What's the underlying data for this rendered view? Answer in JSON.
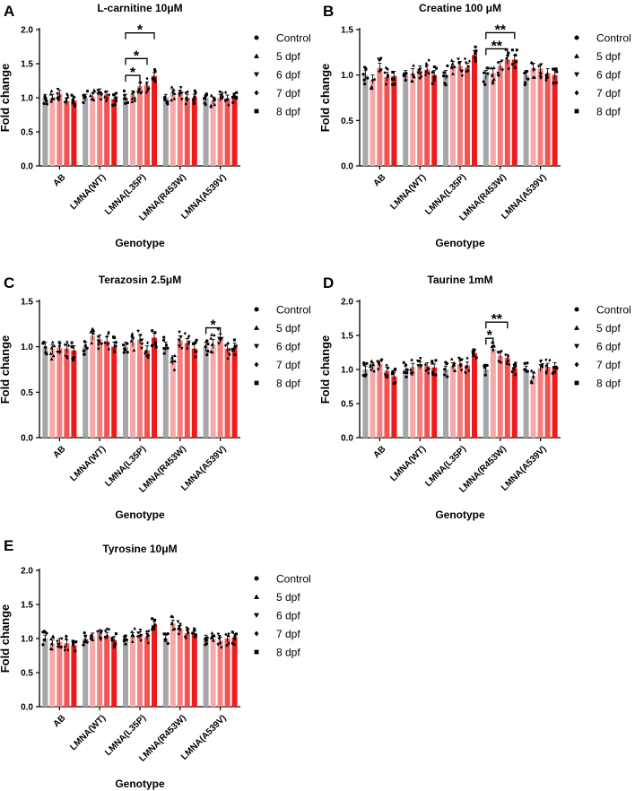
{
  "figure": {
    "colors": {
      "Control": "#a6a6ad",
      "5 dpf": "#f7a8a8",
      "6 dpf": "#f58080",
      "7 dpf": "#f25252",
      "8 dpf": "#ef1b1b"
    },
    "markers": {
      "Control": "circle",
      "5 dpf": "triangle-up",
      "6 dpf": "triangle-down",
      "7 dpf": "diamond",
      "8 dpf": "square"
    }
  },
  "chart_data": [
    {
      "panel": "A",
      "type": "bar",
      "title": "L-carnitine 10μM",
      "xlabel": "Genotype",
      "ylabel": "Fold change",
      "ylim": [
        0,
        2.0
      ],
      "yticks": [
        "0.0",
        "0.5",
        "1.0",
        "1.5",
        "2.0"
      ],
      "categories": [
        "AB",
        "LMNA(WT)",
        "LMNA(L35P)",
        "LMNA(R453W)",
        "LMNA(A539V)"
      ],
      "legend": [
        "Control",
        "5 dpf",
        "6 dpf",
        "7 dpf",
        "8 dpf"
      ],
      "series": [
        {
          "name": "Control",
          "values": [
            1.0,
            1.0,
            1.0,
            1.0,
            1.0
          ]
        },
        {
          "name": "5 dpf",
          "values": [
            1.0,
            1.02,
            1.05,
            1.07,
            0.96
          ]
        },
        {
          "name": "6 dpf",
          "values": [
            1.06,
            1.08,
            1.17,
            1.06,
            1.0
          ]
        },
        {
          "name": "7 dpf",
          "values": [
            0.95,
            1.05,
            1.18,
            1.0,
            0.99
          ]
        },
        {
          "name": "8 dpf",
          "values": [
            0.96,
            0.98,
            1.32,
            1.0,
            1.02
          ]
        }
      ],
      "significance": [
        {
          "category": 2,
          "from": 0,
          "to": 2,
          "label": "*"
        },
        {
          "category": 2,
          "from": 0,
          "to": 3,
          "label": "*"
        },
        {
          "category": 2,
          "from": 0,
          "to": 4,
          "label": "*"
        }
      ]
    },
    {
      "panel": "B",
      "type": "bar",
      "title": "Creatine 100 μM",
      "xlabel": "Genotype",
      "ylabel": "Fold change",
      "ylim": [
        0,
        1.5
      ],
      "yticks": [
        "0.0",
        "0.5",
        "1.0",
        "1.5"
      ],
      "categories": [
        "AB",
        "LMNA(WT)",
        "LMNA(L35P)",
        "LMNA(R453W)",
        "LMNA(A539V)"
      ],
      "legend": [
        "Control",
        "5 dpf",
        "6 dpf",
        "7 dpf",
        "8 dpf"
      ],
      "series": [
        {
          "name": "Control",
          "values": [
            1.0,
            1.0,
            1.0,
            1.0,
            1.0
          ]
        },
        {
          "name": "5 dpf",
          "values": [
            0.95,
            1.02,
            1.1,
            1.02,
            1.08
          ]
        },
        {
          "name": "6 dpf",
          "values": [
            1.08,
            1.05,
            1.1,
            1.1,
            1.07
          ]
        },
        {
          "name": "7 dpf",
          "values": [
            0.98,
            1.06,
            1.08,
            1.17,
            1.02
          ]
        },
        {
          "name": "8 dpf",
          "values": [
            0.99,
            1.0,
            1.22,
            1.17,
            1.0
          ]
        }
      ],
      "significance": [
        {
          "category": 3,
          "from": 0,
          "to": 3,
          "label": "**"
        },
        {
          "category": 3,
          "from": 0,
          "to": 4,
          "label": "**"
        }
      ]
    },
    {
      "panel": "C",
      "type": "bar",
      "title": "Terazosin 2.5μM",
      "xlabel": "Genotype",
      "ylabel": "Fold change",
      "ylim": [
        0,
        1.5
      ],
      "yticks": [
        "0.0",
        "0.5",
        "1.0",
        "1.5"
      ],
      "categories": [
        "AB",
        "LMNA(WT)",
        "LMNA(L35P)",
        "LMNA(R453W)",
        "LMNA(A539V)"
      ],
      "legend": [
        "Control",
        "5 dpf",
        "6 dpf",
        "7 dpf",
        "8 dpf"
      ],
      "series": [
        {
          "name": "Control",
          "values": [
            1.0,
            1.0,
            1.0,
            1.0,
            1.0
          ]
        },
        {
          "name": "5 dpf",
          "values": [
            0.97,
            1.12,
            1.05,
            0.85,
            1.03
          ]
        },
        {
          "name": "6 dpf",
          "values": [
            0.99,
            1.08,
            1.08,
            1.07,
            1.09
          ]
        },
        {
          "name": "7 dpf",
          "values": [
            0.98,
            1.06,
            0.96,
            1.04,
            0.98
          ]
        },
        {
          "name": "8 dpf",
          "values": [
            0.96,
            1.0,
            1.1,
            0.98,
            0.99
          ]
        }
      ],
      "significance": [
        {
          "category": 4,
          "from": 0,
          "to": 2,
          "label": "*"
        }
      ]
    },
    {
      "panel": "D",
      "type": "bar",
      "title": "Taurine 1mM",
      "xlabel": "Genotype",
      "ylabel": "Fold change",
      "ylim": [
        0,
        2.0
      ],
      "yticks": [
        "0.0",
        "0.5",
        "1.0",
        "1.5",
        "2.0"
      ],
      "categories": [
        "AB",
        "LMNA(WT)",
        "LMNA(L35P)",
        "LMNA(R453W)",
        "LMNA(A539V)"
      ],
      "legend": [
        "Control",
        "5 dpf",
        "6 dpf",
        "7 dpf",
        "8 dpf"
      ],
      "series": [
        {
          "name": "Control",
          "values": [
            1.0,
            1.0,
            1.0,
            1.0,
            1.0
          ]
        },
        {
          "name": "5 dpf",
          "values": [
            1.05,
            1.04,
            1.05,
            1.3,
            0.9
          ]
        },
        {
          "name": "6 dpf",
          "values": [
            1.08,
            1.06,
            1.08,
            1.2,
            1.02
          ]
        },
        {
          "name": "7 dpf",
          "values": [
            0.98,
            1.05,
            1.06,
            1.17,
            1.04
          ]
        },
        {
          "name": "8 dpf",
          "values": [
            0.9,
            1.03,
            1.24,
            1.02,
            1.05
          ]
        }
      ],
      "significance": [
        {
          "category": 3,
          "from": 0,
          "to": 1,
          "label": "*"
        },
        {
          "category": 3,
          "from": 0,
          "to": 3,
          "label": "**"
        }
      ]
    },
    {
      "panel": "E",
      "type": "bar",
      "title": "Tyrosine 10μM",
      "xlabel": "Genotype",
      "ylabel": "Fold change",
      "ylim": [
        0,
        2.0
      ],
      "yticks": [
        "0.0",
        "0.5",
        "1.0",
        "1.5",
        "2.0"
      ],
      "categories": [
        "AB",
        "LMNA(WT)",
        "LMNA(L35P)",
        "LMNA(R453W)",
        "LMNA(A539V)"
      ],
      "legend": [
        "Control",
        "5 dpf",
        "6 dpf",
        "7 dpf",
        "8 dpf"
      ],
      "series": [
        {
          "name": "Control",
          "values": [
            1.0,
            1.0,
            1.0,
            1.0,
            1.0
          ]
        },
        {
          "name": "5 dpf",
          "values": [
            0.93,
            1.03,
            1.04,
            1.22,
            1.0
          ]
        },
        {
          "name": "6 dpf",
          "values": [
            0.95,
            1.08,
            1.05,
            1.14,
            0.97
          ]
        },
        {
          "name": "7 dpf",
          "values": [
            0.93,
            1.04,
            1.02,
            1.08,
            1.0
          ]
        },
        {
          "name": "8 dpf",
          "values": [
            0.9,
            0.98,
            1.2,
            1.06,
            1.02
          ]
        }
      ],
      "significance": []
    }
  ]
}
